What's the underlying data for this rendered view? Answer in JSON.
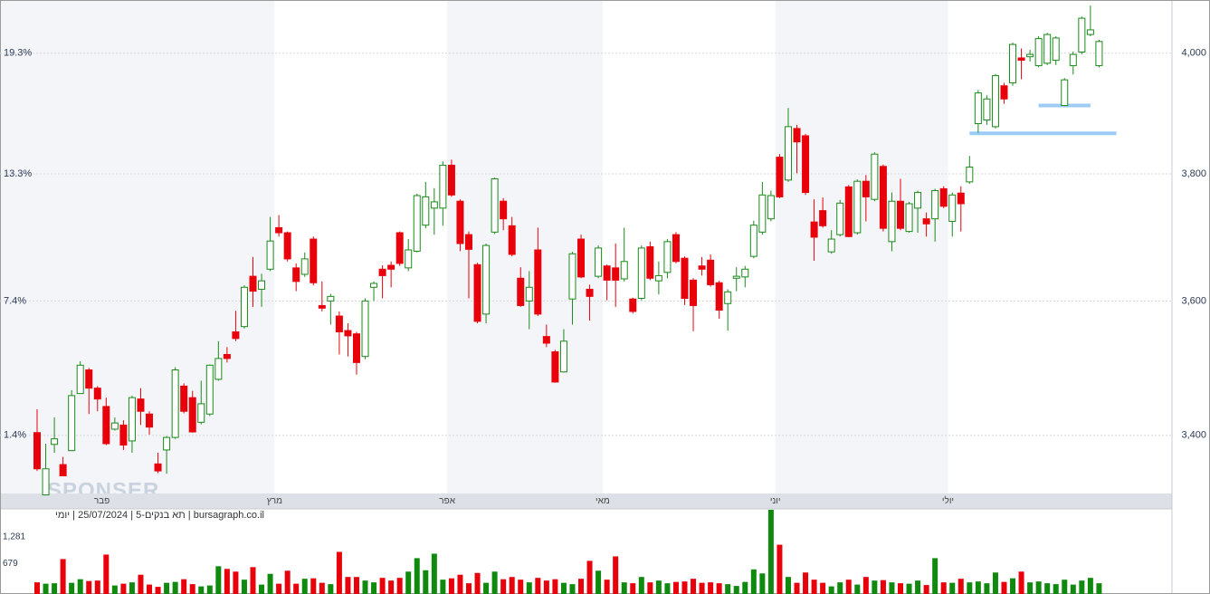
{
  "chart_data": {
    "type": "candlestick",
    "log_scale": true,
    "grid": true,
    "up_color": "#1a8a1a",
    "down_color": "#e8000b",
    "level_color": "#9ccbf5",
    "footer": "bursagraph.co.il | תא בנקים-5 | 25/07/2024 | יומי",
    "watermark": "SPONSER",
    "categories": [
      null,
      null,
      null,
      null,
      null,
      null,
      null,
      null,
      "פבר",
      null,
      null,
      null,
      null,
      null,
      null,
      null,
      null,
      null,
      null,
      null,
      null,
      null,
      null,
      null,
      null,
      null,
      null,
      null,
      "מרץ",
      null,
      null,
      null,
      null,
      null,
      null,
      null,
      null,
      null,
      null,
      null,
      null,
      null,
      null,
      null,
      null,
      null,
      null,
      null,
      "אפר",
      null,
      null,
      null,
      null,
      null,
      null,
      null,
      null,
      null,
      null,
      null,
      null,
      null,
      null,
      null,
      null,
      null,
      "מאי",
      null,
      null,
      null,
      null,
      null,
      null,
      null,
      null,
      null,
      null,
      null,
      null,
      null,
      null,
      null,
      null,
      null,
      null,
      null,
      "יוני",
      null,
      null,
      null,
      null,
      null,
      null,
      null,
      null,
      null,
      null,
      null,
      null,
      null,
      null,
      null,
      null,
      null,
      null,
      null,
      "יולי",
      null,
      null,
      null,
      null,
      null,
      null,
      null,
      null,
      null,
      null,
      null,
      null,
      null,
      null,
      null,
      null,
      null
    ],
    "ohlc": {
      "open": [
        3404,
        3315,
        3387,
        3358,
        3378,
        3461,
        3496,
        3469,
        3442,
        3409,
        3415,
        3392,
        3453,
        3431,
        3359,
        3379,
        3397,
        3472,
        3455,
        3419,
        3431,
        3482,
        3519,
        3553,
        3561,
        3638,
        3618,
        3649,
        3714,
        3706,
        3651,
        3641,
        3696,
        3593,
        3600,
        3577,
        3555,
        3550,
        3516,
        3621,
        3649,
        3655,
        3706,
        3651,
        3677,
        3718,
        3745,
        3745,
        3814,
        3756,
        3703,
        3656,
        3580,
        3707,
        3756,
        3717,
        3635,
        3600,
        3679,
        3546,
        3523,
        3493,
        3603,
        3696,
        3618,
        3638,
        3654,
        3651,
        3634,
        3603,
        3604,
        3684,
        3631,
        3644,
        3703,
        3666,
        3632,
        3654,
        3663,
        3628,
        3596,
        3635,
        3637,
        3669,
        3707,
        3728,
        3827,
        3790,
        3874,
        3862,
        3723,
        3741,
        3676,
        3703,
        3779,
        3706,
        3788,
        3759,
        3812,
        3692,
        3756,
        3708,
        3745,
        3728,
        3728,
        3776,
        3724,
        3769,
        3787,
        3882,
        3888,
        3877,
        3945,
        3950,
        3992,
        3994,
        3979,
        3983,
        3988,
        3912,
        3979,
        4002,
        4032,
        3979
      ],
      "high": [
        3438,
        3388,
        3426,
        3369,
        3466,
        3509,
        3499,
        3472,
        3455,
        3426,
        3422,
        3458,
        3469,
        3435,
        3375,
        3399,
        3500,
        3476,
        3465,
        3480,
        3504,
        3539,
        3530,
        3585,
        3624,
        3668,
        3642,
        3731,
        3734,
        3708,
        3658,
        3675,
        3700,
        3630,
        3611,
        3584,
        3566,
        3553,
        3604,
        3630,
        3655,
        3661,
        3708,
        3696,
        3768,
        3787,
        3777,
        3820,
        3823,
        3759,
        3708,
        3659,
        3689,
        3794,
        3761,
        3731,
        3652,
        3646,
        3714,
        3564,
        3526,
        3557,
        3676,
        3703,
        3625,
        3686,
        3656,
        3689,
        3714,
        3605,
        3686,
        3692,
        3661,
        3696,
        3707,
        3669,
        3635,
        3668,
        3672,
        3631,
        3618,
        3652,
        3654,
        3725,
        3787,
        3773,
        3832,
        3908,
        3880,
        3865,
        3759,
        3762,
        3710,
        3758,
        3782,
        3791,
        3798,
        3835,
        3815,
        3770,
        3792,
        3755,
        3773,
        3738,
        3776,
        3780,
        3770,
        3780,
        3829,
        3938,
        3929,
        3965,
        3950,
        4018,
        4008,
        4006,
        4029,
        4035,
        4029,
        3958,
        4003,
        4063,
        4082,
        4023
      ],
      "low": [
        3349,
        3315,
        3375,
        3342,
        3378,
        3461,
        3431,
        3435,
        3386,
        3407,
        3379,
        3375,
        3415,
        3401,
        3346,
        3345,
        3395,
        3432,
        3404,
        3416,
        3428,
        3480,
        3507,
        3539,
        3558,
        3591,
        3591,
        3646,
        3700,
        3661,
        3615,
        3637,
        3624,
        3584,
        3564,
        3519,
        3516,
        3489,
        3512,
        3600,
        3604,
        3621,
        3654,
        3646,
        3675,
        3713,
        3703,
        3717,
        3763,
        3677,
        3604,
        3566,
        3566,
        3704,
        3710,
        3669,
        3591,
        3557,
        3577,
        3530,
        3477,
        3492,
        3564,
        3635,
        3570,
        3635,
        3601,
        3591,
        3630,
        3581,
        3601,
        3632,
        3610,
        3635,
        3658,
        3594,
        3554,
        3639,
        3622,
        3573,
        3555,
        3615,
        3621,
        3666,
        3703,
        3724,
        3761,
        3787,
        3801,
        3766,
        3662,
        3714,
        3673,
        3700,
        3699,
        3703,
        3724,
        3756,
        3708,
        3677,
        3710,
        3706,
        3706,
        3700,
        3692,
        3745,
        3700,
        3708,
        3784,
        3867,
        3880,
        3874,
        3915,
        3945,
        3956,
        3986,
        3976,
        3980,
        3980,
        3911,
        3964,
        3998,
        4029,
        3976
      ],
      "close": [
        3352,
        3352,
        3395,
        3342,
        3458,
        3503,
        3469,
        3453,
        3388,
        3418,
        3386,
        3455,
        3435,
        3412,
        3349,
        3397,
        3496,
        3435,
        3405,
        3446,
        3503,
        3513,
        3513,
        3543,
        3621,
        3615,
        3631,
        3693,
        3706,
        3665,
        3630,
        3665,
        3628,
        3589,
        3607,
        3553,
        3547,
        3507,
        3600,
        3627,
        3639,
        3649,
        3658,
        3679,
        3765,
        3763,
        3755,
        3814,
        3766,
        3689,
        3680,
        3569,
        3686,
        3792,
        3728,
        3672,
        3593,
        3621,
        3580,
        3536,
        3478,
        3539,
        3673,
        3637,
        3607,
        3682,
        3632,
        3632,
        3661,
        3584,
        3682,
        3635,
        3639,
        3692,
        3661,
        3604,
        3593,
        3649,
        3625,
        3586,
        3614,
        3638,
        3649,
        3718,
        3766,
        3765,
        3763,
        3877,
        3852,
        3770,
        3699,
        3717,
        3696,
        3753,
        3700,
        3788,
        3763,
        3832,
        3713,
        3756,
        3713,
        3752,
        3770,
        3720,
        3773,
        3748,
        3766,
        3752,
        3811,
        3933,
        3923,
        3962,
        3923,
        4015,
        3988,
        3998,
        4025,
        4032,
        4026,
        3955,
        3998,
        4060,
        4040,
        4020
      ]
    },
    "ylim": [
      3317,
      4090
    ],
    "yticks": [
      {
        "value": 3400,
        "label": "3,400"
      },
      {
        "value": 3600,
        "label": "3,600"
      },
      {
        "value": 3800,
        "label": "3,800"
      },
      {
        "value": 4000,
        "label": "4,000"
      }
    ],
    "pct_ticks": [
      {
        "value": 4000,
        "label": "19.3%"
      },
      {
        "value": 3800,
        "label": "13.3%"
      },
      {
        "value": 3600,
        "label": "7.4%"
      },
      {
        "value": 3400,
        "label": "1.4%"
      }
    ],
    "levels": [
      {
        "value": 3866,
        "from": 108,
        "to": 125
      },
      {
        "value": 3912,
        "from": 116,
        "to": 122
      }
    ],
    "volume": {
      "values": [
        260,
        230,
        240,
        780,
        250,
        330,
        290,
        300,
        880,
        190,
        230,
        260,
        430,
        210,
        160,
        250,
        270,
        330,
        220,
        170,
        190,
        620,
        560,
        500,
        320,
        600,
        210,
        450,
        230,
        520,
        230,
        340,
        350,
        250,
        220,
        940,
        380,
        380,
        300,
        260,
        360,
        300,
        360,
        500,
        800,
        530,
        900,
        320,
        350,
        430,
        240,
        470,
        250,
        500,
        330,
        380,
        320,
        260,
        360,
        300,
        330,
        250,
        220,
        340,
        740,
        520,
        320,
        840,
        260,
        240,
        380,
        260,
        300,
        240,
        270,
        280,
        340,
        250,
        260,
        240,
        220,
        180,
        270,
        550,
        460,
        1880,
        1100,
        380,
        250,
        480,
        320,
        250,
        170,
        260,
        320,
        210,
        380,
        300,
        310,
        260,
        240,
        230,
        300,
        200,
        800,
        260,
        250,
        340,
        260,
        280,
        240,
        480,
        270,
        350,
        500,
        260,
        280,
        240,
        220,
        320,
        210,
        300,
        360,
        240
      ],
      "ylim": [
        0,
        1900
      ],
      "yticks": [
        679,
        {
          "value": 1281,
          "label": "1,281"
        }
      ]
    }
  }
}
